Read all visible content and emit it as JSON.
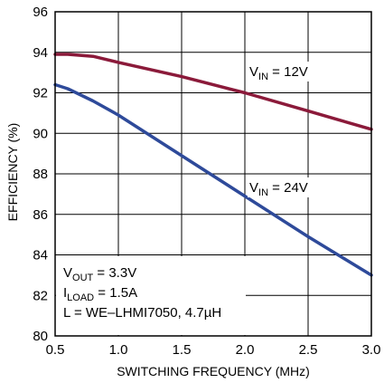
{
  "chart_data": {
    "type": "line",
    "title": "",
    "xlabel": "SWITCHING FREQUENCY (MHz)",
    "ylabel": "EFFICIENCY (%)",
    "xlim": [
      0.5,
      3.0
    ],
    "ylim": [
      80,
      96
    ],
    "x_ticks": [
      "0.5",
      "1.0",
      "1.5",
      "2.0",
      "2.5",
      "3.0"
    ],
    "y_ticks": [
      "80",
      "82",
      "84",
      "86",
      "88",
      "90",
      "92",
      "94",
      "96"
    ],
    "grid": true,
    "series": [
      {
        "label_main": "V",
        "label_sub": "IN",
        "label_rest": " = 12V",
        "color": "#8b1a3a",
        "points": [
          [
            0.5,
            93.9
          ],
          [
            0.6,
            93.9
          ],
          [
            0.8,
            93.8
          ],
          [
            1.0,
            93.5
          ],
          [
            1.5,
            92.8
          ],
          [
            2.0,
            92.0
          ],
          [
            2.5,
            91.1
          ],
          [
            3.0,
            90.2
          ]
        ]
      },
      {
        "label_main": "V",
        "label_sub": "IN",
        "label_rest": " = 24V",
        "color": "#2e4a9a",
        "points": [
          [
            0.5,
            92.4
          ],
          [
            0.6,
            92.2
          ],
          [
            0.8,
            91.6
          ],
          [
            1.0,
            90.9
          ],
          [
            1.5,
            88.9
          ],
          [
            2.0,
            86.9
          ],
          [
            2.5,
            84.9
          ],
          [
            3.0,
            83.0
          ]
        ]
      }
    ],
    "conditions": [
      {
        "main": "V",
        "sub": "OUT",
        "rest": " = 3.3V"
      },
      {
        "main": "I",
        "sub": "LOAD",
        "rest": " = 1.5A"
      },
      {
        "main": "L = WE–LHMI7050, 4.7µH",
        "sub": "",
        "rest": ""
      }
    ]
  }
}
